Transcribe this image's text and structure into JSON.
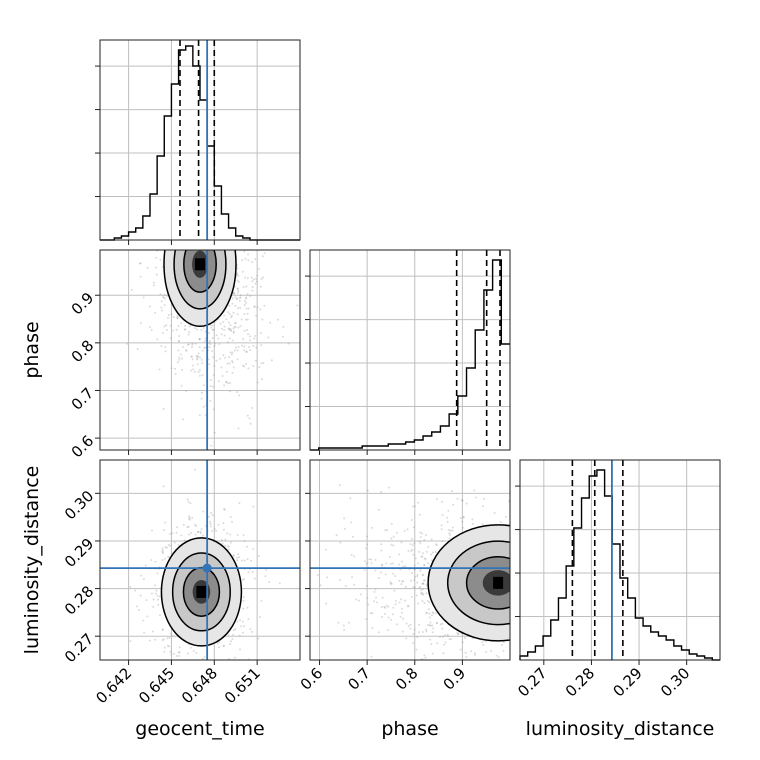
{
  "chart_data": {
    "type": "corner",
    "parameters": [
      "geocent_time",
      "phase",
      "luminosity_distance"
    ],
    "truths": {
      "geocent_time": 0.6475,
      "luminosity_distance": 0.2843
    },
    "truth_color": "#3274b5",
    "grid": true,
    "histogram_quantiles": {
      "geocent_time": [
        0.6456,
        0.6469,
        0.648
      ],
      "phase": [
        0.888,
        0.951,
        0.979
      ],
      "luminosity_distance": [
        0.276,
        0.2807,
        0.2866
      ]
    },
    "marginals": {
      "geocent_time": {
        "range": [
          0.64,
          0.654
        ],
        "values": [
          0.0,
          0.0,
          0.01,
          0.02,
          0.04,
          0.06,
          0.12,
          0.23,
          0.42,
          0.62,
          0.78,
          0.95,
          0.97,
          0.87,
          0.7,
          0.47,
          0.27,
          0.13,
          0.06,
          0.02,
          0.01,
          0.0,
          0.0,
          0.0,
          0.0,
          0.0,
          0.0,
          0.0
        ]
      },
      "phase": {
        "range": [
          0.58,
          1.0
        ],
        "values": [
          0.0,
          0.01,
          0.01,
          0.01,
          0.01,
          0.01,
          0.02,
          0.02,
          0.02,
          0.03,
          0.03,
          0.04,
          0.05,
          0.07,
          0.09,
          0.12,
          0.18,
          0.27,
          0.41,
          0.6,
          0.8,
          0.95,
          0.53
        ]
      },
      "luminosity_distance": {
        "range": [
          0.265,
          0.307
        ],
        "values": [
          0.02,
          0.04,
          0.07,
          0.12,
          0.2,
          0.31,
          0.47,
          0.66,
          0.81,
          0.92,
          0.95,
          0.82,
          0.58,
          0.41,
          0.31,
          0.21,
          0.17,
          0.14,
          0.12,
          0.1,
          0.07,
          0.05,
          0.03,
          0.02,
          0.01,
          0.0
        ]
      }
    },
    "joint_peaks": {
      "phase_vs_geocent_time": {
        "x": 0.647,
        "y": 0.965
      },
      "luminosity_distance_vs_geocent_time": {
        "x": 0.6471,
        "y": 0.2793
      },
      "luminosity_distance_vs_phase": {
        "x": 0.975,
        "y": 0.2812
      }
    },
    "axes": {
      "geocent_time": {
        "range": [
          0.64,
          0.654
        ],
        "ticks": [
          0.642,
          0.645,
          0.648,
          0.651
        ],
        "tick_labels": [
          "0.642",
          "0.645",
          "0.648",
          "0.651"
        ]
      },
      "phase_as_y": {
        "range": [
          0.575,
          0.995
        ],
        "ticks": [
          0.6,
          0.7,
          0.8,
          0.9
        ],
        "tick_labels": [
          "0.6",
          "0.7",
          "0.8",
          "0.9"
        ]
      },
      "phase_as_x": {
        "range": [
          0.58,
          1.0
        ],
        "ticks": [
          0.6,
          0.7,
          0.8,
          0.9
        ],
        "tick_labels": [
          "0.6",
          "0.7",
          "0.8",
          "0.9"
        ]
      },
      "luminosity_distance": {
        "range": [
          0.265,
          0.307
        ],
        "ticks": [
          0.27,
          0.28,
          0.29,
          0.3
        ],
        "tick_labels": [
          "0.27",
          "0.28",
          "0.29",
          "0.30"
        ]
      }
    },
    "labels": {
      "x": [
        "geocent_time",
        "phase",
        "luminosity_distance"
      ],
      "y": [
        "phase",
        "luminosity_distance"
      ]
    }
  }
}
